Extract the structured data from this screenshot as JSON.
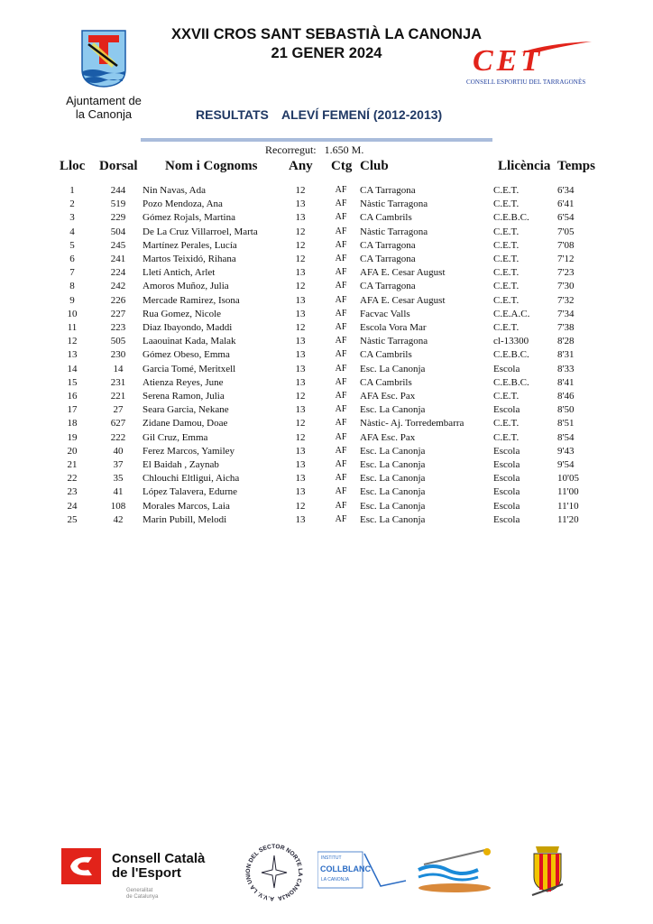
{
  "header": {
    "title_line1": "XXVII CROS SANT SEBASTIÀ LA CANONJA",
    "title_line2": "21 GENER 2024",
    "left_logo_caption_1": "Ajuntament de",
    "left_logo_caption_2": "la Canonja",
    "right_logo_text": "CONSELL ESPORTIU DEL TARRAGONÈS",
    "right_logo_letters": "CET",
    "results_label": "RESULTATS",
    "category_label": "ALEVÍ FEMENÍ (2012-2013)",
    "course_label": "Recorregut:",
    "course_value": "1.650 M."
  },
  "colors": {
    "subtitle": "#1f3864",
    "divider": "#a9bcdb",
    "cet_red": "#e2231a",
    "cet_blue": "#1d3c9c"
  },
  "table": {
    "columns": [
      "Lloc",
      "Dorsal",
      "Nom i Cognoms",
      "Any",
      "Ctg",
      "Club",
      "Llicència",
      "Temps"
    ],
    "rows": [
      [
        "1",
        "244",
        "Nin Navas, Ada",
        "12",
        "AF",
        "CA Tarragona",
        "C.E.T.",
        "6'34"
      ],
      [
        "2",
        "519",
        "Pozo Mendoza, Ana",
        "13",
        "AF",
        "Nàstic Tarragona",
        "C.E.T.",
        "6'41"
      ],
      [
        "3",
        "229",
        "Gómez Rojals, Martina",
        "13",
        "AF",
        "CA Cambrils",
        "C.E.B.C.",
        "6'54"
      ],
      [
        "4",
        "504",
        "De La Cruz Villarroel, Marta",
        "12",
        "AF",
        "Nàstic Tarragona",
        "C.E.T.",
        "7'05"
      ],
      [
        "5",
        "245",
        "Martínez Perales, Lucía",
        "12",
        "AF",
        "CA Tarragona",
        "C.E.T.",
        "7'08"
      ],
      [
        "6",
        "241",
        "Martos Teixidó, Rihana",
        "12",
        "AF",
        "CA Tarragona",
        "C.E.T.",
        "7'12"
      ],
      [
        "7",
        "224",
        "Lletí Antich, Arlet",
        "13",
        "AF",
        "AFA E. Cesar August",
        "C.E.T.",
        "7'23"
      ],
      [
        "8",
        "242",
        "Amoros Muñoz, Julia",
        "12",
        "AF",
        "CA Tarragona",
        "C.E.T.",
        "7'30"
      ],
      [
        "9",
        "226",
        "Mercade Ramirez, Isona",
        "13",
        "AF",
        "AFA E. Cesar August",
        "C.E.T.",
        "7'32"
      ],
      [
        "10",
        "227",
        "Rua Gomez, Nicole",
        "13",
        "AF",
        "Facvac Valls",
        "C.E.A.C.",
        "7'34"
      ],
      [
        "11",
        "223",
        "Diaz Ibayondo, Maddi",
        "12",
        "AF",
        "Escola Vora Mar",
        "C.E.T.",
        "7'38"
      ],
      [
        "12",
        "505",
        "Laaouinat Kada, Malak",
        "13",
        "AF",
        "Nàstic Tarragona",
        "cl-13300",
        "8'28"
      ],
      [
        "13",
        "230",
        "Gómez Obeso, Emma",
        "13",
        "AF",
        "CA Cambrils",
        "C.E.B.C.",
        "8'31"
      ],
      [
        "14",
        "14",
        "Garcia Tomé, Meritxell",
        "13",
        "AF",
        "Esc. La Canonja",
        "Escola",
        "8'33"
      ],
      [
        "15",
        "231",
        "Atienza Reyes, June",
        "13",
        "AF",
        "CA Cambrils",
        "C.E.B.C.",
        "8'41"
      ],
      [
        "16",
        "221",
        "Serena Ramon, Julia",
        "12",
        "AF",
        "AFA Esc. Pax",
        "C.E.T.",
        "8'46"
      ],
      [
        "17",
        "27",
        "Seara Garcia, Nekane",
        "13",
        "AF",
        "Esc. La Canonja",
        "Escola",
        "8'50"
      ],
      [
        "18",
        "627",
        "Zidane Damou, Doae",
        "12",
        "AF",
        "Nàstic- Aj. Torredembarra",
        "C.E.T.",
        "8'51"
      ],
      [
        "19",
        "222",
        "Gil Cruz, Emma",
        "12",
        "AF",
        "AFA Esc. Pax",
        "C.E.T.",
        "8'54"
      ],
      [
        "20",
        "40",
        "Ferez Marcos, Yamiley",
        "13",
        "AF",
        "Esc. La Canonja",
        "Escola",
        "9'43"
      ],
      [
        "21",
        "37",
        "El Baidah , Zaynab",
        "13",
        "AF",
        "Esc. La Canonja",
        "Escola",
        "9'54"
      ],
      [
        "22",
        "35",
        "Chlouchi Eltligui, Aicha",
        "13",
        "AF",
        "Esc. La Canonja",
        "Escola",
        "10'05"
      ],
      [
        "23",
        "41",
        "López Talavera, Edurne",
        "13",
        "AF",
        "Esc. La Canonja",
        "Escola",
        "11'00"
      ],
      [
        "24",
        "108",
        "Morales Marcos, Laia",
        "12",
        "AF",
        "Esc. La Canonja",
        "Escola",
        "11'10"
      ],
      [
        "25",
        "42",
        "Marin Pubill, Melodi",
        "13",
        "AF",
        "Esc. La Canonja",
        "Escola",
        "11'20"
      ]
    ]
  },
  "footer": {
    "ccesport_line1": "Consell Català",
    "ccesport_line2": "de l'Esport",
    "generalitat_1": "Generalitat",
    "generalitat_2": "de Catalunya",
    "sector_norte": "A.V.V. LA UNION DEL SECTOR NORTE LA CANONJA",
    "collblanc_small": "INSTITUT",
    "collblanc": "COLLBLANC",
    "collblanc_sub": "LA CANONJA"
  }
}
